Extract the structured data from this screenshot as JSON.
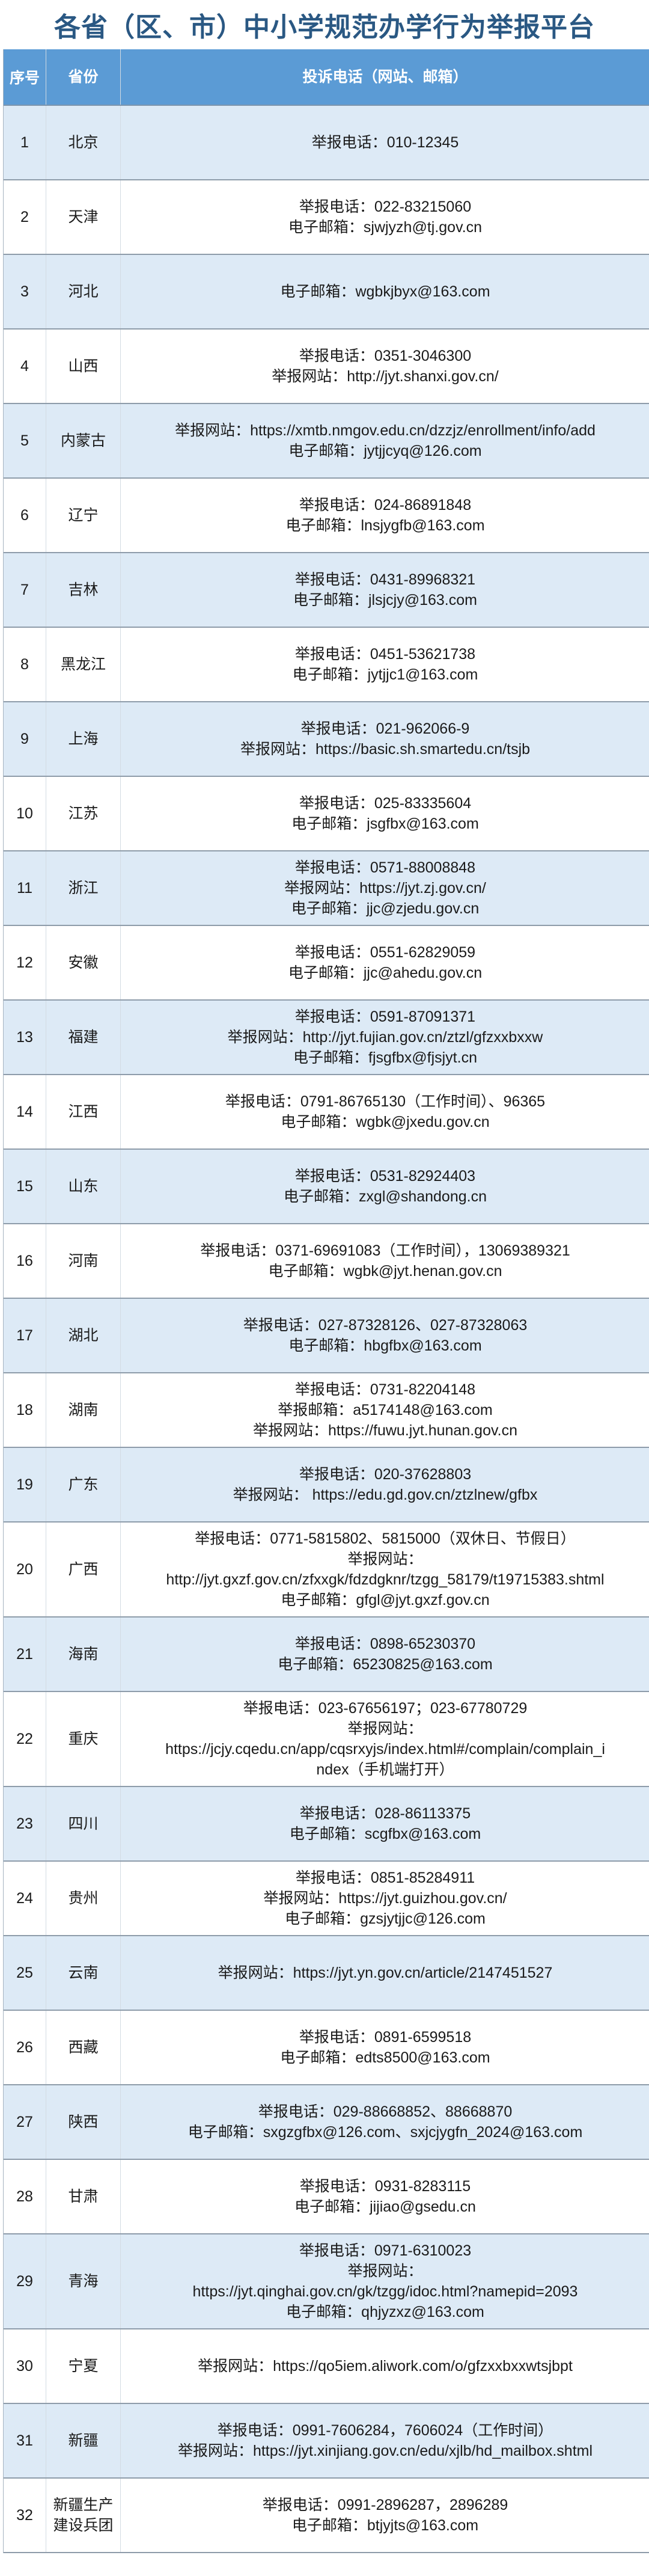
{
  "title": "各省（区、市）中小学规范办学行为举报平台",
  "colors": {
    "header_bg": "#5b9bd5",
    "odd_row_bg": "#ddeaf6",
    "title": "#2a5883"
  },
  "table": {
    "headers": {
      "no": "序号",
      "province": "省份",
      "contact": "投诉电话（网站、邮箱）"
    },
    "rows": [
      {
        "no": "1",
        "province": "北京",
        "lines": [
          "举报电话：010-12345"
        ]
      },
      {
        "no": "2",
        "province": "天津",
        "lines": [
          "举报电话：022-83215060",
          "电子邮箱：sjwjyzh@tj.gov.cn"
        ]
      },
      {
        "no": "3",
        "province": "河北",
        "lines": [
          "电子邮箱：wgbkjbyx@163.com"
        ]
      },
      {
        "no": "4",
        "province": "山西",
        "lines": [
          "举报电话：0351-3046300",
          "举报网站：http://jyt.shanxi.gov.cn/"
        ]
      },
      {
        "no": "5",
        "province": "内蒙古",
        "lines": [
          "举报网站：https://xmtb.nmgov.edu.cn/dzzjz/enrollment/info/add",
          "电子邮箱：jytjjcyq@126.com"
        ]
      },
      {
        "no": "6",
        "province": "辽宁",
        "lines": [
          "举报电话：024-86891848",
          "电子邮箱：lnsjygfb@163.com"
        ]
      },
      {
        "no": "7",
        "province": "吉林",
        "lines": [
          "举报电话：0431-89968321",
          "电子邮箱：jlsjcjy@163.com"
        ]
      },
      {
        "no": "8",
        "province": "黑龙江",
        "lines": [
          "举报电话：0451-53621738",
          "电子邮箱：jytjjc1@163.com"
        ]
      },
      {
        "no": "9",
        "province": "上海",
        "lines": [
          "举报电话：021-962066-9",
          "举报网站：https://basic.sh.smartedu.cn/tsjb"
        ]
      },
      {
        "no": "10",
        "province": "江苏",
        "lines": [
          "举报电话：025-83335604",
          "电子邮箱：jsgfbx@163.com"
        ]
      },
      {
        "no": "11",
        "province": "浙江",
        "lines": [
          "举报电话：0571-88008848",
          "举报网站：https://jyt.zj.gov.cn/",
          "电子邮箱：jjc@zjedu.gov.cn"
        ]
      },
      {
        "no": "12",
        "province": "安徽",
        "lines": [
          "举报电话：0551-62829059",
          "电子邮箱：jjc@ahedu.gov.cn"
        ]
      },
      {
        "no": "13",
        "province": "福建",
        "lines": [
          "举报电话：0591-87091371",
          "举报网站：http://jyt.fujian.gov.cn/ztzl/gfzxxbxxw",
          "电子邮箱：fjsgfbx@fjsjyt.cn"
        ]
      },
      {
        "no": "14",
        "province": "江西",
        "lines": [
          "举报电话：0791-86765130（工作时间）、96365",
          "电子邮箱：wgbk@jxedu.gov.cn"
        ]
      },
      {
        "no": "15",
        "province": "山东",
        "lines": [
          "举报电话：0531-82924403",
          "电子邮箱：zxgl@shandong.cn"
        ]
      },
      {
        "no": "16",
        "province": "河南",
        "lines": [
          "举报电话：0371-69691083（工作时间），13069389321",
          "电子邮箱：wgbk@jyt.henan.gov.cn"
        ]
      },
      {
        "no": "17",
        "province": "湖北",
        "lines": [
          "举报电话：027-87328126、027-87328063",
          "电子邮箱：hbgfbx@163.com"
        ]
      },
      {
        "no": "18",
        "province": "湖南",
        "lines": [
          "举报电话：0731-82204148",
          "举报邮箱：a5174148@163.com",
          "举报网站：https://fuwu.jyt.hunan.gov.cn"
        ]
      },
      {
        "no": "19",
        "province": "广东",
        "lines": [
          "举报电话：020-37628803",
          "举报网站： https://edu.gd.gov.cn/ztzlnew/gfbx"
        ]
      },
      {
        "no": "20",
        "province": "广西",
        "lines": [
          "举报电话：0771-5815802、5815000（双休日、节假日）",
          "举报网站：",
          "http://jyt.gxzf.gov.cn/zfxxgk/fdzdgknr/tzgg_58179/t19715383.shtml",
          "电子邮箱：gfgl@jyt.gxzf.gov.cn"
        ]
      },
      {
        "no": "21",
        "province": "海南",
        "lines": [
          "举报电话：0898-65230370",
          "电子邮箱：65230825@163.com"
        ]
      },
      {
        "no": "22",
        "province": "重庆",
        "lines": [
          "举报电话：023-67656197；023-67780729",
          "举报网站：",
          "https://jcjy.cqedu.cn/app/cqsrxyjs/index.html#/complain/complain_i",
          "ndex（手机端打开）"
        ]
      },
      {
        "no": "23",
        "province": "四川",
        "lines": [
          "举报电话：028-86113375",
          "电子邮箱：scgfbx@163.com"
        ]
      },
      {
        "no": "24",
        "province": "贵州",
        "lines": [
          "举报电话：0851-85284911",
          "举报网站：https://jyt.guizhou.gov.cn/",
          "电子邮箱：gzsjytjjc@126.com"
        ]
      },
      {
        "no": "25",
        "province": "云南",
        "lines": [
          "举报网站：https://jyt.yn.gov.cn/article/2147451527"
        ]
      },
      {
        "no": "26",
        "province": "西藏",
        "lines": [
          "举报电话：0891-6599518",
          "电子邮箱：edts8500@163.com"
        ]
      },
      {
        "no": "27",
        "province": "陕西",
        "lines": [
          "举报电话：029-88668852、88668870",
          "电子邮箱：sxgzgfbx@126.com、sxjcjygfn_2024@163.com"
        ]
      },
      {
        "no": "28",
        "province": "甘肃",
        "lines": [
          "举报电话：0931-8283115",
          "电子邮箱：jijiao@gsedu.cn"
        ]
      },
      {
        "no": "29",
        "province": "青海",
        "lines": [
          "举报电话：0971-6310023",
          "举报网站：",
          "https://jyt.qinghai.gov.cn/gk/tzgg/idoc.html?namepid=2093",
          "电子邮箱：qhjyzxz@163.com"
        ]
      },
      {
        "no": "30",
        "province": "宁夏",
        "lines": [
          "举报网站：https://qo5iem.aliwork.com/o/gfzxxbxxwtsjbpt"
        ]
      },
      {
        "no": "31",
        "province": "新疆",
        "lines": [
          "举报电话：0991-7606284，7606024（工作时间）",
          "举报网站：https://jyt.xinjiang.gov.cn/edu/xjlb/hd_mailbox.shtml"
        ]
      },
      {
        "no": "32",
        "province": "新疆生产建设兵团",
        "lines": [
          "举报电话：0991-2896287，2896289",
          "电子邮箱：btjyjts@163.com"
        ]
      }
    ]
  }
}
